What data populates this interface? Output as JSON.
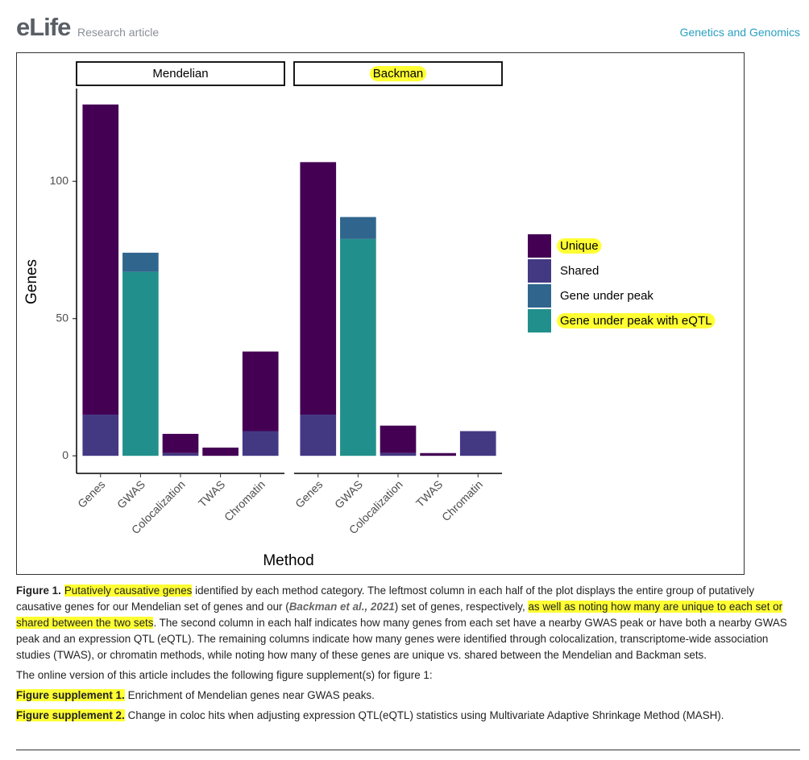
{
  "header": {
    "logo": "eLife",
    "article_type": "Research article",
    "subject": "Genetics and Genomics"
  },
  "chart_data": {
    "type": "bar",
    "stacked": true,
    "xlabel": "Method",
    "ylabel": "Genes",
    "ylim": [
      -6.4,
      133.8
    ],
    "yticks": [
      0,
      50,
      100
    ],
    "legend": "right",
    "series": [
      {
        "name": "Unique",
        "color": "#440154",
        "highlight": true
      },
      {
        "name": "Shared",
        "color": "#433983"
      },
      {
        "name": "Gene under peak",
        "color": "#30668e"
      },
      {
        "name": "Gene under peak with eQTL",
        "color": "#21908c",
        "highlight": true
      }
    ],
    "panels": [
      {
        "strip": "Mendelian",
        "categories": [
          "Genes",
          "GWAS",
          "Colocalization",
          "TWAS",
          "Chromatin"
        ],
        "values": [
          [
            113,
            0,
            7,
            3,
            29
          ],
          [
            15,
            0,
            1,
            0,
            9
          ],
          [
            0,
            7,
            0,
            0,
            0
          ],
          [
            0,
            67,
            0,
            0,
            0
          ]
        ]
      },
      {
        "strip": "Backman",
        "highlight": true,
        "categories": [
          "Genes",
          "GWAS",
          "Colocalization",
          "TWAS",
          "Chromatin"
        ],
        "values": [
          [
            92,
            0,
            10,
            1,
            0
          ],
          [
            15,
            0,
            1,
            0,
            9
          ],
          [
            0,
            8,
            0,
            0,
            0
          ],
          [
            0,
            79,
            0,
            0,
            0
          ]
        ]
      }
    ]
  },
  "caption": {
    "label": "Figure 1.",
    "parts": [
      {
        "text": "Putatively causative genes",
        "highlight": true
      },
      {
        "text": " identified by each method category. The leftmost column in each half of the plot displays the entire group of putatively causative genes for our Mendelian set of genes and our ("
      },
      {
        "text": "Backman et al., 2021",
        "citation": true
      },
      {
        "text": ") set of genes, respectively, "
      },
      {
        "text": "as well as noting how many are unique to each set or shared between the two sets",
        "highlight": true
      },
      {
        "text": ". The second column in each half indicates how many genes from each set have a nearby GWAS peak or have both a nearby GWAS peak and an expression QTL (eQTL). The remaining columns indicate how many genes were identified through colocalization, transcriptome-wide association studies (TWAS), or chromatin methods, while noting how many of these genes are unique vs. shared between the Mendelian and Backman sets."
      }
    ]
  },
  "supplement_intro": "The online version of this article includes the following figure supplement(s) for figure 1:",
  "supplements": [
    {
      "label": "Figure supplement 1.",
      "text": "Enrichment of Mendelian genes near GWAS peaks."
    },
    {
      "label": "Figure supplement 2.",
      "text": "Change in coloc hits when adjusting expression QTL(eQTL) statistics using Multivariate Adaptive Shrinkage Method (MASH)."
    }
  ]
}
